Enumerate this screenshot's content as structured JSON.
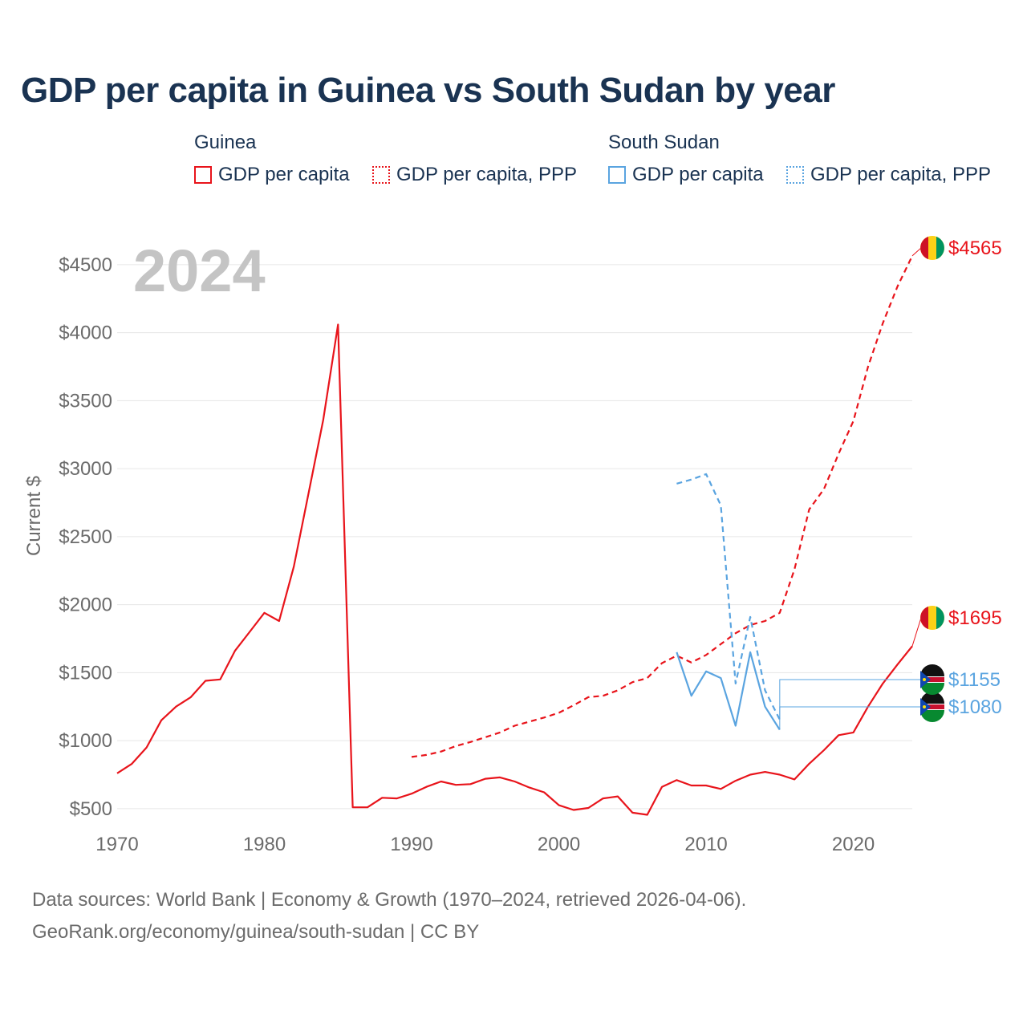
{
  "title": "GDP per capita in Guinea vs South Sudan by year",
  "legend": {
    "guinea_title": "Guinea",
    "south_sudan_title": "South Sudan",
    "gdp_label": "GDP per capita",
    "ppp_label": "GDP per capita, PPP"
  },
  "colors": {
    "guinea": "#e8141b",
    "south_sudan": "#5aa4e0",
    "grid": "#e6e6e6",
    "axis_text": "#6b6b6b",
    "year_watermark": "#c4c4c4"
  },
  "footer": {
    "line1": "Data sources: World Bank | Economy & Growth (1970–2024, retrieved 2026-04-06).",
    "line2": "GeoRank.org/economy/guinea/south-sudan | CC BY"
  },
  "chart_data": {
    "type": "line",
    "year_label": "2024",
    "ylabel": "Current $",
    "xlim": [
      1970,
      2024
    ],
    "ylim": [
      400,
      4700
    ],
    "x_ticks": [
      1970,
      1980,
      1990,
      2000,
      2010,
      2020
    ],
    "y_ticks": [
      {
        "value": 500,
        "label": "$500"
      },
      {
        "value": 1000,
        "label": "$1000"
      },
      {
        "value": 1500,
        "label": "$1500"
      },
      {
        "value": 2000,
        "label": "$2000"
      },
      {
        "value": 2500,
        "label": "$2500"
      },
      {
        "value": 3000,
        "label": "$3000"
      },
      {
        "value": 3500,
        "label": "$3500"
      },
      {
        "value": 4000,
        "label": "$4000"
      },
      {
        "value": 4500,
        "label": "$4500"
      }
    ],
    "series": [
      {
        "name": "Guinea GDP per capita",
        "country": "guinea",
        "style": "solid",
        "end_label": "$1695",
        "x": [
          1970,
          1971,
          1972,
          1973,
          1974,
          1975,
          1976,
          1977,
          1978,
          1979,
          1980,
          1981,
          1982,
          1983,
          1984,
          1985,
          1986,
          1987,
          1988,
          1989,
          1990,
          1991,
          1992,
          1993,
          1994,
          1995,
          1996,
          1997,
          1998,
          1999,
          2000,
          2001,
          2002,
          2003,
          2004,
          2005,
          2006,
          2007,
          2008,
          2009,
          2010,
          2011,
          2012,
          2013,
          2014,
          2015,
          2016,
          2017,
          2018,
          2019,
          2020,
          2021,
          2022,
          2023,
          2024
        ],
        "values": [
          760,
          830,
          950,
          1150,
          1250,
          1320,
          1440,
          1450,
          1660,
          1800,
          1940,
          1880,
          2280,
          2820,
          3360,
          4060,
          510,
          510,
          580,
          575,
          610,
          660,
          700,
          675,
          680,
          720,
          730,
          700,
          655,
          620,
          525,
          490,
          505,
          575,
          590,
          470,
          455,
          660,
          710,
          670,
          670,
          645,
          705,
          750,
          770,
          750,
          715,
          830,
          930,
          1040,
          1060,
          1250,
          1420,
          1560,
          1695
        ]
      },
      {
        "name": "Guinea GDP per capita, PPP",
        "country": "guinea",
        "style": "dashed",
        "end_label": "$4565",
        "x": [
          1990,
          1991,
          1992,
          1993,
          1994,
          1995,
          1996,
          1997,
          1998,
          1999,
          2000,
          2001,
          2002,
          2003,
          2004,
          2005,
          2006,
          2007,
          2008,
          2009,
          2010,
          2011,
          2012,
          2013,
          2014,
          2015,
          2016,
          2017,
          2018,
          2019,
          2020,
          2021,
          2022,
          2023,
          2024
        ],
        "values": [
          880,
          895,
          920,
          960,
          990,
          1025,
          1060,
          1110,
          1140,
          1170,
          1205,
          1260,
          1320,
          1330,
          1370,
          1430,
          1460,
          1570,
          1625,
          1575,
          1630,
          1710,
          1790,
          1850,
          1880,
          1940,
          2260,
          2700,
          2850,
          3110,
          3350,
          3750,
          4070,
          4340,
          4565
        ]
      },
      {
        "name": "South Sudan GDP per capita",
        "country": "south_sudan",
        "style": "solid",
        "end_label": "$1080",
        "x": [
          2008,
          2009,
          2010,
          2011,
          2012,
          2013,
          2014,
          2015
        ],
        "values": [
          1650,
          1330,
          1510,
          1460,
          1110,
          1650,
          1250,
          1080
        ]
      },
      {
        "name": "South Sudan GDP per capita, PPP",
        "country": "south_sudan",
        "style": "dashed",
        "end_label": "$1155",
        "x": [
          2008,
          2009,
          2010,
          2011,
          2012,
          2013,
          2014,
          2015
        ],
        "values": [
          2890,
          2920,
          2960,
          2730,
          1420,
          1910,
          1370,
          1155
        ]
      }
    ]
  }
}
